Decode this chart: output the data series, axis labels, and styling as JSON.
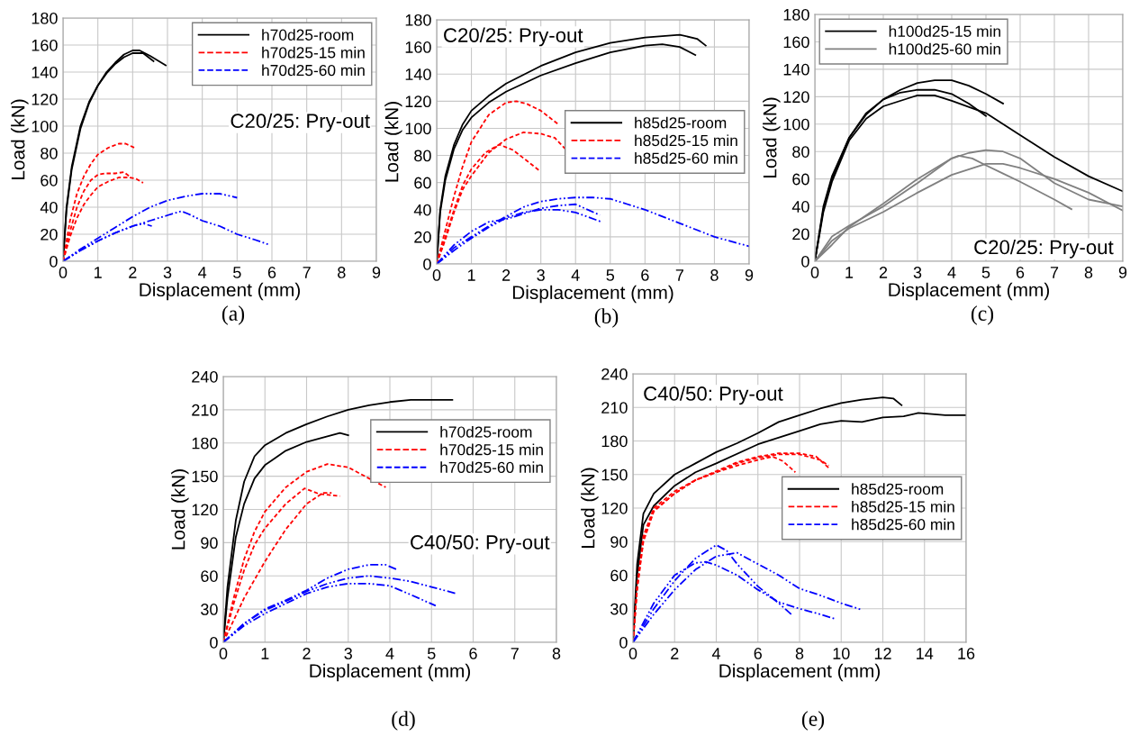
{
  "chart_data": [
    {
      "type": "line",
      "xlabel": "Displacement (mm)",
      "ylabel": "Load (kN)",
      "xlim": [
        0,
        9
      ],
      "xticks": [
        0,
        1,
        2,
        3,
        4,
        5,
        6,
        7,
        8,
        9
      ],
      "ylim": [
        0,
        180
      ],
      "yticks": [
        0,
        20,
        40,
        60,
        80,
        100,
        120,
        140,
        160,
        180
      ],
      "grid": true,
      "legend": "top right",
      "annotations": [
        "C20/25: Pry-out",
        "(a)"
      ],
      "series": [
        {
          "name": "h70d25-room",
          "color": "#000000",
          "line_style": "solid",
          "x": [
            0,
            0.1,
            0.25,
            0.5,
            0.75,
            1,
            1.25,
            1.5,
            1.75,
            2,
            2.2,
            2.5,
            2.95
          ],
          "values": [
            0,
            40,
            70,
            100,
            118,
            130,
            140,
            147,
            153,
            156,
            156,
            152,
            145
          ]
        },
        {
          "color": "#000000",
          "line_style": "solid",
          "x": [
            0,
            0.1,
            0.25,
            0.5,
            0.75,
            1,
            1.25,
            1.5,
            1.75,
            2,
            2.3,
            2.6
          ],
          "values": [
            0,
            38,
            68,
            98,
            117,
            130,
            139,
            146,
            151,
            154,
            154,
            148
          ]
        },
        {
          "name": "h70d25-15 min",
          "color": "#ff0000",
          "line_style": "dashed",
          "x": [
            0,
            0.2,
            0.4,
            0.6,
            0.8,
            1,
            1.3,
            1.6,
            1.8,
            2.05
          ],
          "values": [
            0,
            30,
            50,
            63,
            72,
            79,
            84,
            87,
            87,
            84
          ]
        },
        {
          "color": "#ff0000",
          "line_style": "dashed",
          "x": [
            0,
            0.2,
            0.4,
            0.6,
            0.8,
            1,
            1.2,
            1.5,
            1.75,
            1.95
          ],
          "values": [
            0,
            22,
            40,
            52,
            60,
            64,
            65,
            65,
            66,
            62
          ]
        },
        {
          "color": "#ff0000",
          "line_style": "dashed",
          "x": [
            0,
            0.2,
            0.4,
            0.6,
            0.8,
            1,
            1.3,
            1.6,
            1.9,
            2.1,
            2.3
          ],
          "values": [
            0,
            18,
            32,
            42,
            49,
            55,
            59,
            62,
            62,
            61,
            58
          ]
        },
        {
          "name": "h70d25-60 min",
          "color": "#0000ff",
          "line_style": "dashdot",
          "x": [
            0,
            0.5,
            1,
            1.5,
            2,
            2.5,
            3,
            3.5,
            4,
            4.5,
            5
          ],
          "values": [
            0,
            9,
            17,
            25,
            33,
            40,
            45,
            48,
            50,
            50,
            47
          ]
        },
        {
          "color": "#0000ff",
          "line_style": "dashdot",
          "x": [
            0,
            0.5,
            1,
            1.5,
            2,
            2.5,
            3,
            3.4,
            3.6,
            4,
            4.5,
            5,
            5.5,
            5.95
          ],
          "values": [
            0,
            8,
            15,
            21,
            26,
            30,
            34,
            37,
            35,
            30,
            26,
            20,
            16,
            12
          ]
        },
        {
          "color": "#0000ff",
          "line_style": "dashdot",
          "x": [
            0,
            0.5,
            1,
            1.5,
            2,
            2.3,
            2.55
          ],
          "values": [
            0,
            8,
            15,
            21,
            26,
            28,
            26
          ]
        }
      ]
    },
    {
      "type": "line",
      "xlabel": "Displacement (mm)",
      "ylabel": "Load (kN)",
      "xlim": [
        0,
        9
      ],
      "xticks": [
        0,
        1,
        2,
        3,
        4,
        5,
        6,
        7,
        8,
        9
      ],
      "ylim": [
        0,
        180
      ],
      "yticks": [
        0,
        20,
        40,
        60,
        80,
        100,
        120,
        140,
        160,
        180
      ],
      "grid": true,
      "legend": "center right",
      "annotations": [
        "C20/25: Pry-out",
        "(b)"
      ],
      "series": [
        {
          "name": "h85d25-room",
          "color": "#000000",
          "line_style": "solid",
          "x": [
            0,
            0.1,
            0.25,
            0.5,
            0.75,
            1,
            1.5,
            2,
            3,
            4,
            5,
            6,
            7,
            7.5,
            7.75
          ],
          "values": [
            0,
            40,
            65,
            88,
            103,
            113,
            124,
            133,
            146,
            156,
            163,
            167,
            169,
            166,
            161
          ]
        },
        {
          "color": "#000000",
          "line_style": "solid",
          "x": [
            0,
            0.1,
            0.25,
            0.5,
            0.75,
            1,
            1.5,
            2,
            3,
            4,
            5,
            6,
            6.5,
            7,
            7.45
          ],
          "values": [
            0,
            38,
            62,
            85,
            99,
            108,
            119,
            127,
            139,
            148,
            156,
            161,
            162,
            160,
            154
          ]
        },
        {
          "name": "h85d25-15 min",
          "color": "#ff0000",
          "line_style": "dashed",
          "x": [
            0,
            0.25,
            0.5,
            0.75,
            1,
            1.5,
            2,
            2.3,
            2.6,
            3,
            3.5
          ],
          "values": [
            0,
            25,
            50,
            72,
            90,
            110,
            119,
            120,
            118,
            113,
            103
          ]
        },
        {
          "color": "#ff0000",
          "line_style": "dashed",
          "x": [
            0,
            0.25,
            0.5,
            0.75,
            1,
            1.5,
            2,
            2.5,
            3,
            3.4,
            3.7
          ],
          "values": [
            0,
            18,
            38,
            55,
            65,
            82,
            92,
            97,
            96,
            93,
            85
          ]
        },
        {
          "color": "#ff0000",
          "line_style": "dashed",
          "x": [
            0,
            0.25,
            0.5,
            0.75,
            1,
            1.4,
            1.8,
            2.2,
            2.6,
            2.95
          ],
          "values": [
            0,
            20,
            40,
            58,
            70,
            82,
            88,
            84,
            76,
            69
          ]
        },
        {
          "name": "h85d25-60 min",
          "color": "#0000ff",
          "line_style": "dashdot",
          "x": [
            0,
            0.5,
            1,
            1.5,
            2,
            2.5,
            3,
            3.5,
            4,
            4.5,
            5,
            5.5,
            6,
            7,
            8,
            9
          ],
          "values": [
            0,
            12,
            20,
            28,
            35,
            42,
            46,
            48,
            49,
            49,
            48,
            44,
            40,
            30,
            20,
            13
          ]
        },
        {
          "color": "#0000ff",
          "line_style": "dashdot",
          "x": [
            0,
            0.5,
            1,
            1.5,
            2,
            2.5,
            3,
            3.5,
            4,
            4.7
          ],
          "values": [
            0,
            14,
            24,
            31,
            33,
            37,
            41,
            43,
            44,
            36
          ]
        },
        {
          "color": "#0000ff",
          "line_style": "dashdot",
          "x": [
            0,
            0.5,
            1,
            1.5,
            2,
            2.5,
            3,
            3.5,
            4,
            4.75
          ],
          "values": [
            0,
            10,
            19,
            27,
            34,
            38,
            40,
            40,
            38,
            31
          ]
        }
      ]
    },
    {
      "type": "line",
      "xlabel": "Displacement (mm)",
      "ylabel": "Load (kN)",
      "xlim": [
        0,
        9
      ],
      "xticks": [
        0,
        1,
        2,
        3,
        4,
        5,
        6,
        7,
        8,
        9
      ],
      "ylim": [
        0,
        180
      ],
      "yticks": [
        0,
        20,
        40,
        60,
        80,
        100,
        120,
        140,
        160,
        180
      ],
      "grid": true,
      "legend": "top left",
      "annotations": [
        "C20/25: Pry-out",
        "(c)"
      ],
      "series": [
        {
          "name": "h100d25-15 min",
          "color": "#000000",
          "line_style": "solid",
          "x": [
            0,
            0.25,
            0.5,
            1,
            1.5,
            2,
            2.5,
            3,
            3.5,
            4,
            4.5,
            5,
            5.5
          ],
          "values": [
            0,
            40,
            62,
            90,
            108,
            118,
            125,
            130,
            132,
            132,
            128,
            122,
            115
          ]
        },
        {
          "color": "#000000",
          "line_style": "solid",
          "x": [
            0,
            0.25,
            0.5,
            1,
            1.5,
            2,
            2.5,
            3,
            3.5,
            4,
            4.5,
            5
          ],
          "values": [
            0,
            38,
            60,
            90,
            107,
            118,
            123,
            125,
            125,
            122,
            115,
            106
          ]
        },
        {
          "color": "#000000",
          "line_style": "solid",
          "x": [
            0,
            0.25,
            0.5,
            1,
            1.5,
            2,
            3,
            3.5,
            4,
            5,
            6,
            7,
            8,
            9
          ],
          "values": [
            0,
            36,
            58,
            88,
            104,
            113,
            121,
            121,
            117,
            108,
            92,
            76,
            62,
            51
          ]
        },
        {
          "name": "h100d25-60 min",
          "color": "#808080",
          "line_style": "solid",
          "x": [
            0,
            0.5,
            1,
            2,
            3,
            4,
            4.5,
            5,
            5.5,
            6,
            7,
            8,
            9
          ],
          "values": [
            0,
            12,
            25,
            42,
            60,
            75,
            79,
            81,
            80,
            75,
            57,
            45,
            40
          ]
        },
        {
          "color": "#808080",
          "line_style": "solid",
          "x": [
            0,
            0.5,
            1,
            2,
            3,
            4,
            4.2,
            4.6,
            5,
            5.5,
            6,
            7,
            7.5
          ],
          "values": [
            0,
            18,
            26,
            40,
            57,
            75,
            77,
            75,
            70,
            64,
            58,
            45,
            38
          ]
        },
        {
          "color": "#808080",
          "line_style": "solid",
          "x": [
            0,
            0.5,
            1,
            2,
            3,
            4,
            5,
            5.5,
            6,
            7,
            8,
            9
          ],
          "values": [
            0,
            15,
            24,
            36,
            50,
            63,
            71,
            71,
            68,
            60,
            50,
            37
          ]
        }
      ]
    },
    {
      "type": "line",
      "xlabel": "Displacement (mm)",
      "ylabel": "Load (kN)",
      "xlim": [
        0,
        8
      ],
      "xticks": [
        0,
        1,
        2,
        3,
        4,
        5,
        6,
        7,
        8
      ],
      "ylim": [
        0,
        240
      ],
      "yticks": [
        0,
        30,
        60,
        90,
        120,
        150,
        180,
        210,
        240
      ],
      "grid": true,
      "legend": "top right",
      "annotations": [
        "C40/50: Pry-out",
        "(d)"
      ],
      "series": [
        {
          "name": "h70d25-room",
          "color": "#000000",
          "line_style": "solid",
          "x": [
            0,
            0.1,
            0.3,
            0.5,
            0.75,
            1,
            1.5,
            2,
            2.5,
            3,
            3.5,
            4,
            4.5,
            5,
            5.5
          ],
          "values": [
            0,
            50,
            110,
            145,
            168,
            178,
            189,
            197,
            204,
            210,
            214,
            217,
            219,
            219,
            219
          ]
        },
        {
          "color": "#000000",
          "line_style": "solid",
          "x": [
            0,
            0.1,
            0.3,
            0.5,
            0.75,
            1,
            1.5,
            2,
            2.5,
            2.8,
            3
          ],
          "values": [
            0,
            40,
            95,
            125,
            148,
            160,
            173,
            181,
            186,
            189,
            187
          ]
        },
        {
          "name": "h70d25-15 min",
          "color": "#ff0000",
          "line_style": "dashed",
          "x": [
            0,
            0.25,
            0.5,
            0.75,
            1,
            1.5,
            2,
            2.5,
            3,
            3.5,
            3.9
          ],
          "values": [
            0,
            40,
            75,
            100,
            118,
            140,
            154,
            161,
            158,
            148,
            140
          ]
        },
        {
          "color": "#ff0000",
          "line_style": "dashed",
          "x": [
            0,
            0.25,
            0.5,
            0.75,
            1,
            1.5,
            1.95,
            2.3,
            2.8
          ],
          "values": [
            0,
            35,
            65,
            88,
            103,
            125,
            139,
            134,
            132
          ]
        },
        {
          "color": "#ff0000",
          "line_style": "dashed",
          "x": [
            0,
            0.25,
            0.5,
            1,
            1.5,
            2,
            2.4,
            2.6
          ],
          "values": [
            0,
            20,
            40,
            73,
            102,
            125,
            135,
            135
          ]
        },
        {
          "name": "h70d25-60 min",
          "color": "#0000ff",
          "line_style": "dashdot",
          "x": [
            0,
            0.5,
            1,
            1.5,
            2,
            2.5,
            3,
            3.5,
            3.9,
            4.15
          ],
          "values": [
            0,
            17,
            30,
            38,
            47,
            58,
            66,
            70,
            70,
            66
          ]
        },
        {
          "color": "#0000ff",
          "line_style": "dashdot",
          "x": [
            0,
            0.5,
            1,
            1.5,
            2,
            2.5,
            3,
            3.5,
            4,
            4.5,
            5,
            5.6
          ],
          "values": [
            0,
            17,
            29,
            37,
            46,
            53,
            58,
            60,
            58,
            55,
            50,
            44
          ]
        },
        {
          "color": "#0000ff",
          "line_style": "dashdot",
          "x": [
            0,
            0.5,
            1,
            1.5,
            2,
            2.5,
            3,
            3.5,
            4,
            4.5,
            5.1
          ],
          "values": [
            0,
            15,
            26,
            35,
            44,
            50,
            53,
            53,
            51,
            43,
            33
          ]
        }
      ]
    },
    {
      "type": "line",
      "xlabel": "Displacement (mm)",
      "ylabel": "Load (kN)",
      "xlim": [
        0,
        16
      ],
      "xticks": [
        0,
        2,
        4,
        6,
        8,
        10,
        12,
        14,
        16
      ],
      "ylim": [
        0,
        240
      ],
      "yticks": [
        0,
        30,
        60,
        90,
        120,
        150,
        180,
        210,
        240
      ],
      "grid": true,
      "legend": "center right",
      "annotations": [
        "C40/50: Pry-out",
        "(e)"
      ],
      "series": [
        {
          "name": "h85d25-room",
          "color": "#000000",
          "line_style": "solid",
          "x": [
            0,
            0.2,
            0.5,
            1,
            2,
            3,
            4,
            5,
            6,
            7,
            8,
            9,
            10,
            11,
            12,
            12.5,
            12.9
          ],
          "values": [
            0,
            70,
            115,
            133,
            150,
            160,
            170,
            178,
            187,
            197,
            203,
            209,
            214,
            217,
            219,
            218,
            212
          ]
        },
        {
          "color": "#000000",
          "line_style": "solid",
          "x": [
            0,
            0.2,
            0.5,
            1,
            2,
            3,
            4,
            6,
            8,
            9,
            10,
            11,
            12,
            13,
            13.7,
            15,
            16
          ],
          "values": [
            0,
            60,
            105,
            122,
            140,
            152,
            160,
            177,
            189,
            195,
            198,
            197,
            201,
            202,
            205,
            203,
            203
          ]
        },
        {
          "name": "h85d25-15 min",
          "color": "#ff0000",
          "line_style": "dashed",
          "x": [
            0,
            0.2,
            0.5,
            1,
            2,
            3,
            4,
            5,
            6,
            7,
            8,
            8.8,
            9.4
          ],
          "values": [
            0,
            50,
            95,
            120,
            135,
            145,
            153,
            161,
            166,
            169,
            169,
            166,
            156
          ]
        },
        {
          "color": "#ff0000",
          "line_style": "dashed",
          "x": [
            0,
            0.2,
            0.5,
            1,
            2,
            3,
            4,
            5,
            6,
            7,
            8,
            9,
            9.4
          ],
          "values": [
            0,
            48,
            92,
            118,
            133,
            145,
            152,
            160,
            165,
            168,
            168,
            163,
            158
          ]
        },
        {
          "color": "#ff0000",
          "line_style": "dashed",
          "x": [
            0,
            0.2,
            0.5,
            1,
            2,
            3,
            4,
            5,
            6,
            6.7,
            7.2,
            7.8
          ],
          "values": [
            0,
            48,
            90,
            117,
            133,
            145,
            152,
            158,
            163,
            166,
            162,
            152
          ]
        },
        {
          "name": "h85d25-60 min",
          "color": "#0000ff",
          "line_style": "dashdot",
          "x": [
            0,
            1,
            2,
            3,
            4,
            4.5,
            5,
            6,
            7,
            7.6
          ],
          "values": [
            0,
            30,
            55,
            75,
            87,
            82,
            70,
            50,
            35,
            25
          ]
        },
        {
          "color": "#0000ff",
          "line_style": "dashdot",
          "x": [
            0,
            1,
            2,
            3,
            3.5,
            4,
            5,
            6,
            7,
            8,
            9,
            9.7
          ],
          "values": [
            0,
            35,
            60,
            71,
            72,
            69,
            60,
            47,
            36,
            30,
            25,
            21
          ]
        },
        {
          "color": "#0000ff",
          "line_style": "dashdot",
          "x": [
            0,
            1,
            2,
            3,
            4,
            5,
            6,
            7,
            8,
            9,
            10,
            11
          ],
          "values": [
            0,
            25,
            47,
            65,
            77,
            80,
            70,
            60,
            48,
            42,
            35,
            29
          ]
        }
      ]
    }
  ]
}
